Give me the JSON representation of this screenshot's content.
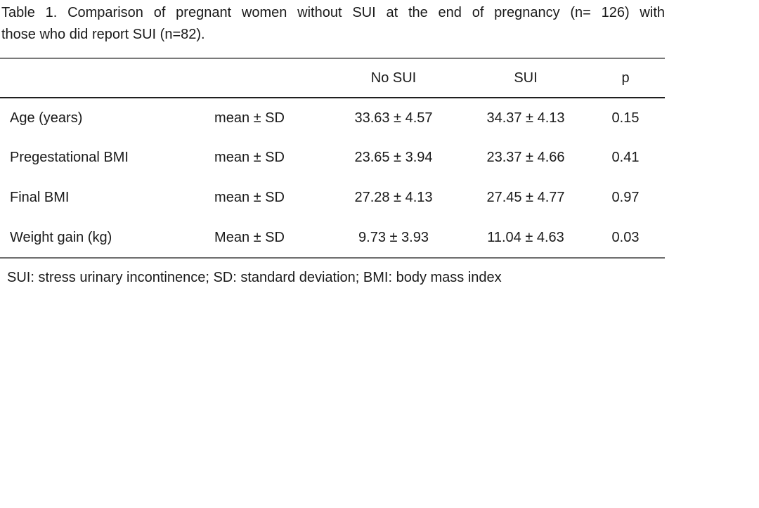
{
  "caption": {
    "line1": "Table 1. Comparison of pregnant women without SUI at the end of pregnancy (n= 126) with",
    "line2": "those who did report SUI (n=82)."
  },
  "table": {
    "header": {
      "label": "",
      "measure": "",
      "no_sui": "No SUI",
      "sui": "SUI",
      "p": "p"
    },
    "rows": [
      {
        "label": "Age (years)",
        "measure": "mean ± SD",
        "no_sui": "33.63 ± 4.57",
        "sui": "34.37 ± 4.13",
        "p": "0.15"
      },
      {
        "label": "Pregestational BMI",
        "measure": "mean ± SD",
        "no_sui": "23.65 ± 3.94",
        "sui": "23.37 ± 4.66",
        "p": "0.41"
      },
      {
        "label": "Final BMI",
        "measure": "mean ± SD",
        "no_sui": "27.28 ± 4.13",
        "sui": "27.45 ± 4.77",
        "p": "0.97"
      },
      {
        "label": "Weight gain (kg)",
        "measure": "Mean ± SD",
        "no_sui": "9.73 ± 3.93",
        "sui": "11.04 ± 4.63",
        "p": "0.03"
      }
    ]
  },
  "footnote": "SUI: stress urinary incontinence; SD: standard deviation; BMI: body mass index",
  "colors": {
    "text": "#1a1a1a",
    "rule_gray": "#7a7a7a",
    "rule_dark": "#1f1f1f",
    "background": "#ffffff"
  }
}
